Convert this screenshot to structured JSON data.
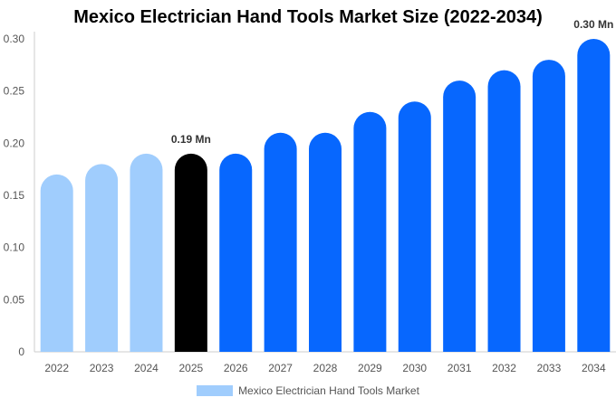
{
  "chart_data": {
    "type": "bar",
    "title": "Mexico Electrician Hand Tools Market Size (2022-2034)",
    "categories": [
      "2022",
      "2023",
      "2024",
      "2025",
      "2026",
      "2027",
      "2028",
      "2029",
      "2030",
      "2031",
      "2032",
      "2033",
      "2034"
    ],
    "series": [
      {
        "name": "Mexico Electrician Hand Tools Market",
        "values": [
          0.17,
          0.18,
          0.19,
          0.19,
          0.19,
          0.21,
          0.21,
          0.23,
          0.24,
          0.26,
          0.27,
          0.28,
          0.3
        ]
      }
    ],
    "ylim": [
      0,
      0.3
    ],
    "yticks": [
      "0",
      "0.05",
      "0.10",
      "0.15",
      "0.20",
      "0.25",
      "0.30"
    ],
    "data_labels": [
      {
        "category": "2025",
        "text": "0.19 Mn"
      },
      {
        "category": "2034",
        "text": "0.30 Mn"
      }
    ],
    "colors": {
      "historical": "#a0cdfd",
      "current": "#000000",
      "forecast": "#0767fe",
      "legend": "#a0cdfd"
    },
    "legend_position": "bottom-center",
    "grid": false
  }
}
